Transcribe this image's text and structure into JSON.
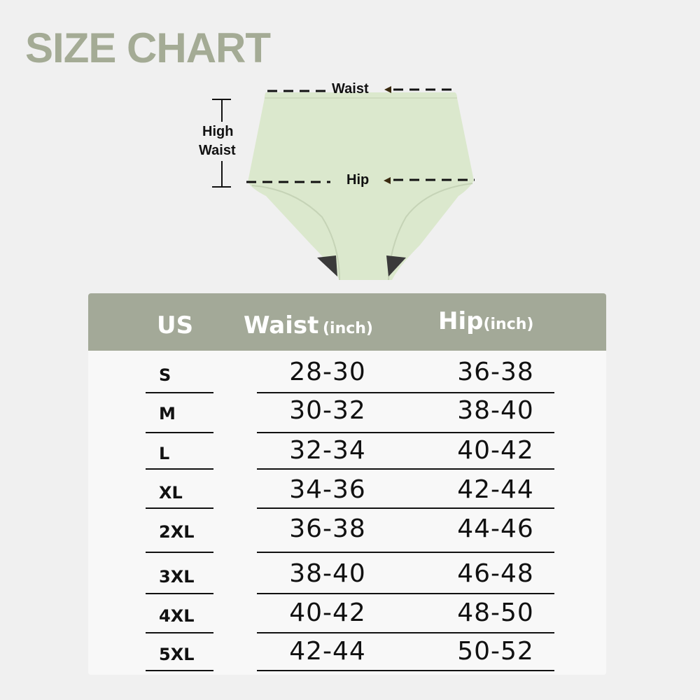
{
  "title": "SIZE CHART",
  "diagram": {
    "waist_label": "Waist",
    "high_waist_label_1": "High",
    "high_waist_label_2": "Waist",
    "hip_label": "Hip",
    "garment_color": "#dbe8cd",
    "gusset_color": "#3a3a3a"
  },
  "table": {
    "header_color": "#a3a998",
    "headers": {
      "size": "US",
      "waist": "Waist",
      "waist_unit": "(inch)",
      "hip": "Hip",
      "hip_unit": "(inch)"
    },
    "rows": [
      {
        "size": "S",
        "waist": "28-30",
        "hip": "36-38"
      },
      {
        "size": "M",
        "waist": "30-32",
        "hip": "38-40"
      },
      {
        "size": "L",
        "waist": "32-34",
        "hip": "40-42"
      },
      {
        "size": "XL",
        "waist": "34-36",
        "hip": "42-44"
      },
      {
        "size": "2XL",
        "waist": "36-38",
        "hip": "44-46"
      },
      {
        "size": "3XL",
        "waist": "38-40",
        "hip": "46-48"
      },
      {
        "size": "4XL",
        "waist": "40-42",
        "hip": "48-50"
      },
      {
        "size": "5XL",
        "waist": "42-44",
        "hip": "50-52"
      }
    ]
  }
}
